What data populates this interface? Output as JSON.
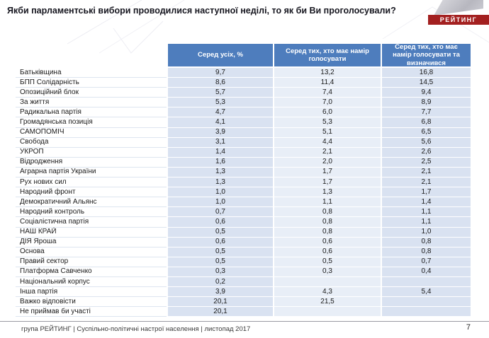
{
  "page": {
    "title": "Якби парламентські вибори проводилися наступної неділі, то як би Ви проголосували?",
    "logo_text": "РЕЙТИНГ",
    "footer": "група РЕЙТИНГ | Суспільно-політичні настрої населення | листопад 2017",
    "page_number": "7"
  },
  "chart_data": {
    "type": "table",
    "columns": [
      "Серед усіх, %",
      "Серед тих, хто має намір голосувати",
      "Серед тих, хто має намір голосувати та визначився"
    ],
    "rows": [
      {
        "label": "Батьківщина",
        "values": [
          "9,7",
          "13,2",
          "16,8"
        ]
      },
      {
        "label": "БПП Солідарність",
        "values": [
          "8,6",
          "11,4",
          "14,5"
        ]
      },
      {
        "label": "Опозиційний блок",
        "values": [
          "5,7",
          "7,4",
          "9,4"
        ]
      },
      {
        "label": "За життя",
        "values": [
          "5,3",
          "7,0",
          "8,9"
        ]
      },
      {
        "label": "Радикальна партія",
        "values": [
          "4,7",
          "6,0",
          "7,7"
        ]
      },
      {
        "label": "Громадянська позиція",
        "values": [
          "4,1",
          "5,3",
          "6,8"
        ]
      },
      {
        "label": "САМОПОМІЧ",
        "values": [
          "3,9",
          "5,1",
          "6,5"
        ]
      },
      {
        "label": "Свобода",
        "values": [
          "3,1",
          "4,4",
          "5,6"
        ]
      },
      {
        "label": "УКРОП",
        "values": [
          "1,4",
          "2,1",
          "2,6"
        ]
      },
      {
        "label": "Відродження",
        "values": [
          "1,6",
          "2,0",
          "2,5"
        ]
      },
      {
        "label": "Аграрна партія України",
        "values": [
          "1,3",
          "1,7",
          "2,1"
        ]
      },
      {
        "label": "Рух нових сил",
        "values": [
          "1,3",
          "1,7",
          "2,1"
        ]
      },
      {
        "label": "Народний фронт",
        "values": [
          "1,0",
          "1,3",
          "1,7"
        ]
      },
      {
        "label": "Демократичний Альянс",
        "values": [
          "1,0",
          "1,1",
          "1,4"
        ]
      },
      {
        "label": "Народний контроль",
        "values": [
          "0,7",
          "0,8",
          "1,1"
        ]
      },
      {
        "label": "Соціалістична партія",
        "values": [
          "0,6",
          "0,8",
          "1,1"
        ]
      },
      {
        "label": "НАШ КРАЙ",
        "values": [
          "0,5",
          "0,8",
          "1,0"
        ]
      },
      {
        "label": "ДІЯ Яроша",
        "values": [
          "0,6",
          "0,6",
          "0,8"
        ]
      },
      {
        "label": "Основа",
        "values": [
          "0,5",
          "0,6",
          "0,8"
        ]
      },
      {
        "label": "Правий сектор",
        "values": [
          "0,5",
          "0,5",
          "0,7"
        ]
      },
      {
        "label": "Платформа Савченко",
        "values": [
          "0,3",
          "0,3",
          "0,4"
        ]
      },
      {
        "label": "Національний корпус",
        "values": [
          "0,2",
          "",
          ""
        ]
      },
      {
        "label": "Інша партія",
        "values": [
          "3,9",
          "4,3",
          "5,4"
        ]
      },
      {
        "label": "Важко відповісти",
        "values": [
          "20,1",
          "21,5",
          ""
        ]
      },
      {
        "label": "Не приймав би участі",
        "values": [
          "20,1",
          "",
          ""
        ]
      }
    ]
  }
}
